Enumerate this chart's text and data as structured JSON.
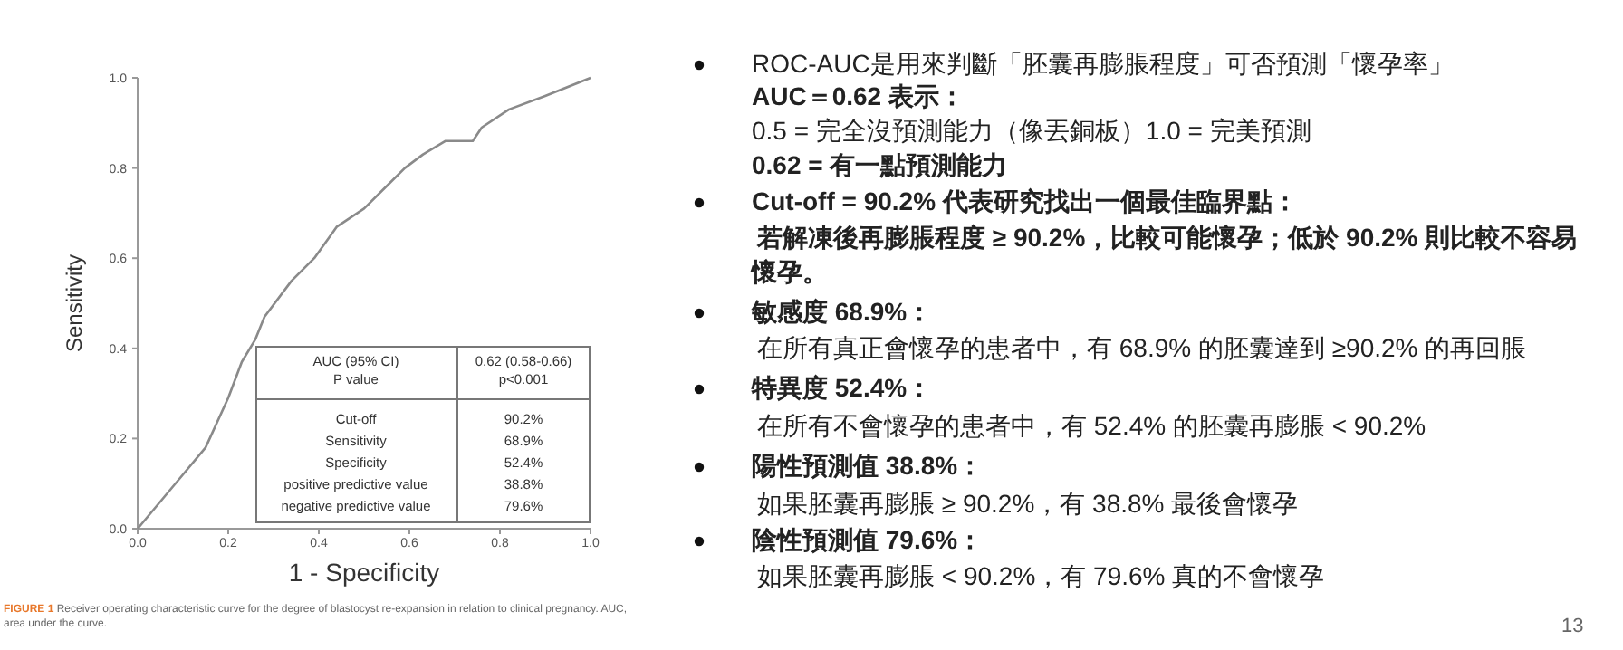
{
  "chart_data": {
    "type": "line",
    "xlabel": "1 - Specificity",
    "ylabel": "Sensitivity",
    "x": [
      0,
      0.1,
      0.15,
      0.2,
      0.23,
      0.26,
      0.28,
      0.34,
      0.39,
      0.44,
      0.5,
      0.55,
      0.59,
      0.63,
      0.68,
      0.74,
      0.76,
      0.82,
      0.9,
      0.95,
      1
    ],
    "series": [
      {
        "color": "#8a8a8a",
        "values": [
          0,
          0.12,
          0.18,
          0.29,
          0.37,
          0.42,
          0.47,
          0.55,
          0.6,
          0.67,
          0.71,
          0.76,
          0.8,
          0.83,
          0.86,
          0.86,
          0.89,
          0.93,
          0.96,
          0.98,
          1
        ]
      }
    ],
    "xlim": [
      0,
      1
    ],
    "ylim": [
      0,
      1
    ],
    "xticks": [
      {
        "value": 0,
        "label": "0.0"
      },
      {
        "value": 0.2,
        "label": "0.2"
      },
      {
        "value": 0.4,
        "label": "0.4"
      },
      {
        "value": 0.6,
        "label": "0.6"
      },
      {
        "value": 0.8,
        "label": "0.8"
      },
      {
        "value": 1,
        "label": "1.0"
      }
    ],
    "yticks": [
      {
        "value": 0,
        "label": "0.0"
      },
      {
        "value": 0.2,
        "label": "0.2"
      },
      {
        "value": 0.4,
        "label": "0.4"
      },
      {
        "value": 0.6,
        "label": "0.6"
      },
      {
        "value": 0.8,
        "label": "0.8"
      },
      {
        "value": 1,
        "label": "1.0"
      }
    ],
    "grid": false,
    "annotations": [
      "AUC (95% CI)\nP value",
      "0.62 (0.58-0.66)\np<0.001",
      "Cut-off\nSensitivity\nSpecificity\npositive predictive value\nnegative predictive value",
      "90.2%\n68.9%\n52.4%\n38.8%\n79.6%",
      "FIGURE 1",
      "Receiver operating characteristic curve for the degree of blastocyst re-expansion in relation to clinical pregnancy. AUC, area under the curve.",
      "ROC-AUC是用來判斷「胚囊再膨脹程度」可否預測「懷孕率」",
      "AUC＝0.62 表示：",
      "0.5 = 完全沒預測能力（像丟銅板）1.0 = 完美預測",
      "0.62 = 有一點預測能力",
      "Cut-off = 90.2% 代表研究找出一個最佳臨界點：",
      "若解凍後再膨脹程度 ≥ 90.2%，比較可能懷孕；低於 90.2% 則比較不容易",
      "懷孕。",
      "敏感度 68.9%：",
      "在所有真正會懷孕的患者中，有 68.9% 的胚囊達到 ≥90.2% 的再回脹",
      "特異度 52.4%：",
      "在所有不會懷孕的患者中，有 52.4% 的胚囊再膨脹 < 90.2%",
      "陽性預測值 38.8%：",
      "如果胚囊再膨脹 ≥ 90.2%，有 38.8% 最後會懷孕",
      "陰性預測值 79.6%：",
      "如果胚囊再膨脹 < 90.2%，有 79.6% 真的不會懷孕",
      "13"
    ]
  }
}
